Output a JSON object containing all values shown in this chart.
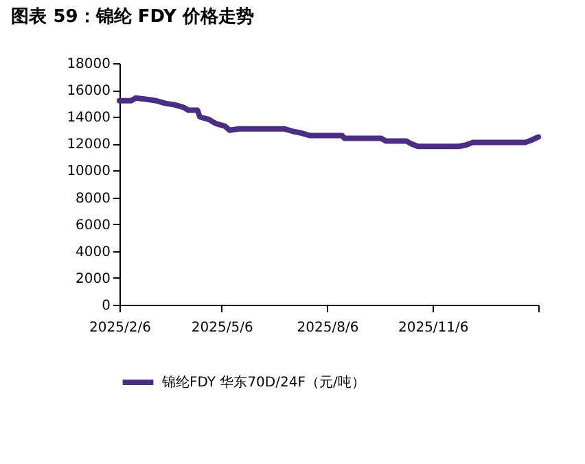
{
  "chart_data": {
    "type": "line",
    "title": "图表 59：锦纶 FDY 价格走势",
    "x": [
      "2025-02-06",
      "2025-02-16",
      "2025-02-20",
      "2025-03-02",
      "2025-03-10",
      "2025-03-14",
      "2025-03-18",
      "2025-03-26",
      "2025-04-03",
      "2025-04-07",
      "2025-04-15",
      "2025-04-17",
      "2025-04-25",
      "2025-05-01",
      "2025-05-09",
      "2025-05-13",
      "2025-05-21",
      "2025-06-30",
      "2025-07-08",
      "2025-07-14",
      "2025-07-22",
      "2025-08-19",
      "2025-08-21",
      "2025-09-22",
      "2025-09-26",
      "2025-10-14",
      "2025-10-18",
      "2025-10-24",
      "2025-11-29",
      "2025-12-05",
      "2025-12-11",
      "2026-01-26",
      "2026-02-01",
      "2026-02-06"
    ],
    "series": [
      {
        "name": "锦纶FDY 华东70D/24F（元/吨）",
        "color": "#4b2e83",
        "values": [
          15200,
          15200,
          15400,
          15300,
          15200,
          15100,
          15000,
          14900,
          14700,
          14500,
          14500,
          14000,
          13800,
          13500,
          13300,
          13000,
          13100,
          13100,
          12900,
          12800,
          12600,
          12600,
          12400,
          12400,
          12200,
          12200,
          12000,
          11800,
          11800,
          11900,
          12100,
          12100,
          12300,
          12500
        ]
      }
    ],
    "xlim": [
      "2025-02-06",
      "2026-02-06"
    ],
    "xticks": [
      {
        "value": "2025-02-06",
        "label": "2025/2/6"
      },
      {
        "value": "2025-05-06",
        "label": "2025/5/6"
      },
      {
        "value": "2025-08-06",
        "label": "2025/8/6"
      },
      {
        "value": "2025-11-06",
        "label": "2025/11/6"
      },
      {
        "value": "2026-02-06",
        "label": null
      }
    ],
    "ylim": [
      0,
      18000
    ],
    "yticks": [
      0,
      2000,
      4000,
      6000,
      8000,
      10000,
      12000,
      14000,
      16000,
      18000
    ],
    "grid": false,
    "legend": "bottom",
    "marker": "none",
    "line_style": "solid"
  }
}
